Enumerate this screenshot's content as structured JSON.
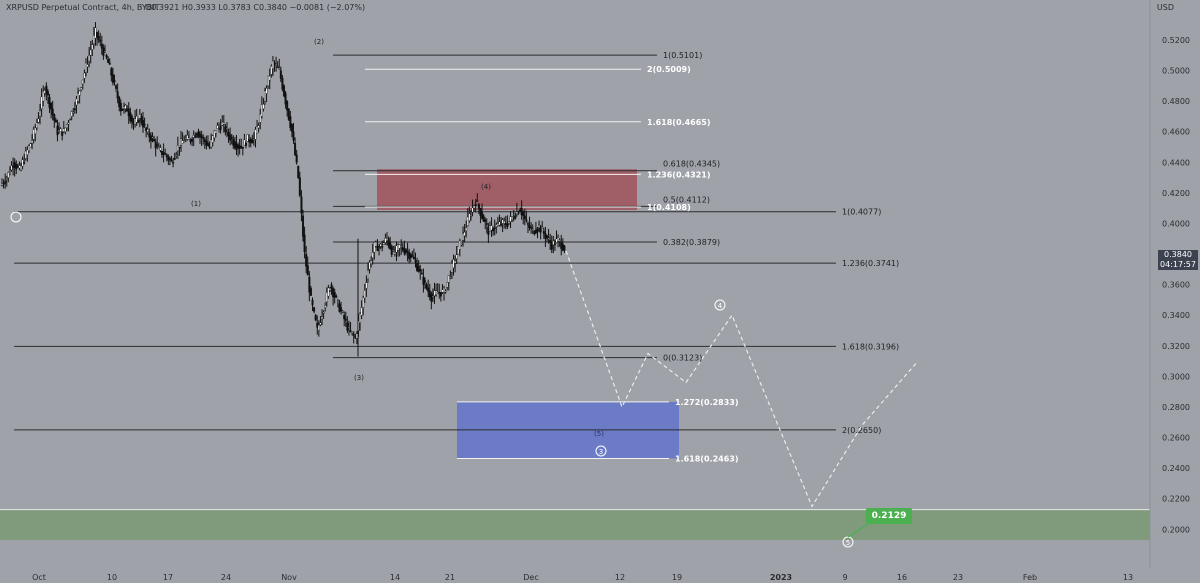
{
  "header": {
    "title": "XRPUSD Perpetual Contract, 4h, BYBIT",
    "ohlc": "O0.3921 H0.3933 L0.3783 C0.3840 −0.0081 (−2.07%)",
    "currency": "USD"
  },
  "price_tag": {
    "price": "0.3840",
    "countdown": "04:17:57"
  },
  "target_tag": {
    "label": "0.2129"
  },
  "colors": {
    "background": "#9fa3a9",
    "candle": "#111111",
    "resistance_zone": "#a0525c",
    "target_zone": "#6677c9",
    "support_band": "#7f9b7c",
    "projection": "#f0f0f0",
    "tag_green": "#4caf50"
  },
  "chart_data": {
    "type": "candlestick",
    "title": "",
    "ylim": [
      0.193,
      0.537
    ],
    "y_ticks": [
      "0.5200",
      "0.5000",
      "0.4800",
      "0.4600",
      "0.4400",
      "0.4200",
      "0.4000",
      "0.3800",
      "0.3600",
      "0.3400",
      "0.3200",
      "0.3000",
      "0.2800",
      "0.2600",
      "0.2400",
      "0.2200",
      "0.2000"
    ],
    "x_ticks": [
      "Oct",
      "10",
      "17",
      "24",
      "Nov",
      "14",
      "21",
      "Dec",
      "12",
      "19",
      "2023",
      "9",
      "16",
      "23",
      "Feb",
      "13"
    ],
    "price_path": [
      [
        0.425,
        0.43,
        0.44,
        0.435,
        0.445,
        0.455,
        0.47,
        0.49,
        0.475,
        0.46
      ],
      [
        0.46,
        0.47,
        0.48,
        0.495,
        0.51,
        0.525,
        0.515,
        0.505,
        0.49,
        0.475
      ],
      [
        0.475,
        0.465,
        0.47,
        0.46,
        0.455,
        0.448,
        0.445,
        0.44,
        0.45,
        0.455
      ],
      [
        0.455,
        0.46,
        0.455,
        0.45,
        0.462,
        0.465,
        0.458,
        0.452,
        0.45,
        0.455
      ],
      [
        0.455,
        0.47,
        0.49,
        0.505,
        0.5,
        0.48,
        0.46,
        0.43,
        0.38,
        0.35
      ],
      [
        0.33,
        0.345,
        0.36,
        0.35,
        0.34,
        0.33,
        0.325,
        0.345,
        0.37,
        0.385
      ],
      [
        0.385,
        0.39,
        0.38,
        0.385,
        0.382,
        0.378,
        0.37,
        0.36,
        0.352,
        0.355
      ],
      [
        0.355,
        0.368,
        0.38,
        0.392,
        0.405,
        0.415,
        0.405,
        0.395,
        0.398,
        0.4
      ],
      [
        0.4,
        0.405,
        0.41,
        0.4,
        0.395,
        0.398,
        0.392,
        0.386,
        0.389,
        0.384
      ]
    ],
    "fib_levels_upper": [
      {
        "label": "1(0.5101)",
        "value": 0.5101,
        "style": "dark"
      },
      {
        "label": "2(0.5009)",
        "value": 0.5009,
        "style": "light"
      },
      {
        "label": "1.618(0.4665)",
        "value": 0.4665,
        "style": "light"
      },
      {
        "label": "0.618(0.4345)",
        "value": 0.4345,
        "style": "dark"
      },
      {
        "label": "1.236(0.4321)",
        "value": 0.4321,
        "style": "light"
      },
      {
        "label": "0.5(0.4112)",
        "value": 0.4112,
        "style": "dark"
      },
      {
        "label": "1(0.4108)",
        "value": 0.4108,
        "style": "light"
      },
      {
        "label": "0.382(0.3879)",
        "value": 0.3879,
        "style": "dark"
      },
      {
        "label": "0(0.3123)",
        "value": 0.3123,
        "style": "dark"
      },
      {
        "label": "1.272(0.2833)",
        "value": 0.2833,
        "style": "light"
      },
      {
        "label": "1.618(0.2463)",
        "value": 0.2463,
        "style": "light"
      }
    ],
    "long_levels": [
      {
        "label": "1(0.4077)",
        "value": 0.4077
      },
      {
        "label": "1.236(0.3741)",
        "value": 0.3741
      },
      {
        "label": "1.618(0.3196)",
        "value": 0.3196
      },
      {
        "label": "2(0.2650)",
        "value": 0.265
      }
    ],
    "wave_labels": [
      "(1)",
      "(2)",
      "(3)",
      "(4)",
      "(5)"
    ],
    "projection_labels": [
      "3",
      "4",
      "5"
    ],
    "zones": [
      {
        "name": "resistance",
        "from": 0.4088,
        "to": 0.4355
      },
      {
        "name": "target",
        "from": 0.2463,
        "to": 0.2833
      },
      {
        "name": "support",
        "from": 0.193,
        "to": 0.2129
      }
    ],
    "projection_path": [
      0.382,
      0.28,
      0.315,
      0.296,
      0.34,
      0.215,
      0.268,
      0.31
    ]
  }
}
